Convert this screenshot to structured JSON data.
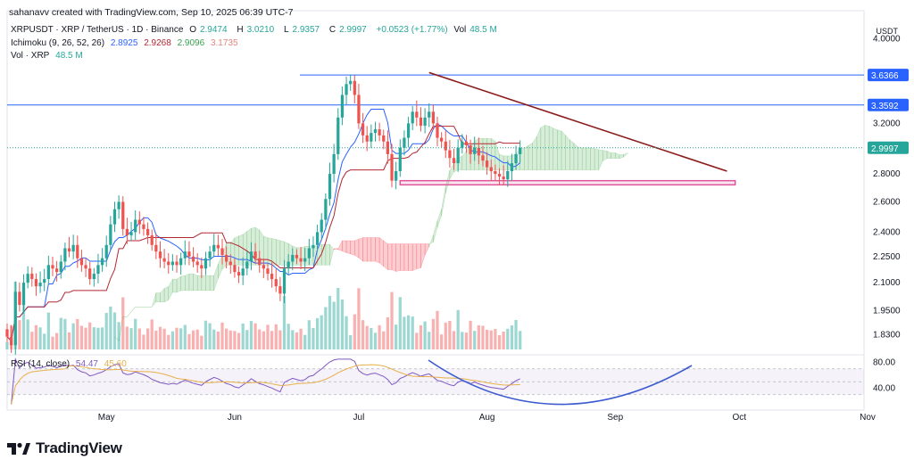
{
  "credit": "sahanavv created with TradingView.com, Sep 10, 2025 06:39 UTC-7",
  "legend": {
    "symbol": "XRPUSDT · XRP / TetherUS · 1D · Binance",
    "o_label": "O",
    "o": "2.9474",
    "h_label": "H",
    "h": "3.0210",
    "l_label": "L",
    "l": "2.9357",
    "c_label": "C",
    "c": "2.9997",
    "change": "+0.0523 (+1.77%)",
    "vol_label": "Vol",
    "vol": "48.5 M",
    "ichimoku_label": "Ichimoku (9, 26, 52, 26)",
    "ich_conversion": "2.8925",
    "ich_base": "2.9268",
    "ich_leading_a": "2.9096",
    "ich_leading_b": "3.1735",
    "vol_series_label": "Vol · XRP",
    "vol_series_value": "48.5 M",
    "rsi_label": "RSI (14, close)",
    "rsi_value": "54.47",
    "rsi_ma_value": "45.60"
  },
  "currency": "USDT",
  "logo_text": "TradingView",
  "chart_data": {
    "type": "candlestick",
    "symbol": "XRPUSDT",
    "timeframe": "1D",
    "x_ticks": [
      "May",
      "Jun",
      "Jul",
      "Aug",
      "Sep",
      "Oct",
      "Nov"
    ],
    "y_scale": "log",
    "y_ticks": [
      "4.0000",
      "3.6366",
      "3.3592",
      "3.2000",
      "2.9997",
      "2.8000",
      "2.6000",
      "2.4000",
      "2.2500",
      "2.1000",
      "1.9500",
      "1.8300"
    ],
    "price_tick_values": [
      4.0,
      3.2,
      2.8,
      2.6,
      2.4,
      2.25,
      2.1,
      1.95,
      1.83
    ],
    "ylim": [
      1.76,
      4.25
    ],
    "horizontal_levels": [
      {
        "label": "3.6366",
        "value": 3.6366,
        "color": "#2962ff"
      },
      {
        "label": "3.3592",
        "value": 3.3592,
        "color": "#2962ff"
      }
    ],
    "last_price": {
      "label": "2.9997",
      "value": 2.9997,
      "color": "#26a69a"
    },
    "support_box": {
      "from_date": "2025-07-11",
      "to_date": "2025-09-30",
      "low": 2.72,
      "high": 2.75,
      "color": "#e0559a"
    },
    "trendline": {
      "from": [
        "2025-07-18",
        3.66
      ],
      "to": [
        "2025-09-28",
        2.82
      ],
      "color": "#8b1a1a"
    },
    "candles_approx": {
      "start_date": "2025-04-07",
      "close": [
        1.82,
        1.78,
        2.05,
        1.98,
        2.1,
        2.15,
        2.12,
        2.08,
        2.1,
        2.12,
        2.2,
        2.18,
        2.16,
        2.22,
        2.3,
        2.28,
        2.32,
        2.24,
        2.2,
        2.18,
        2.12,
        2.15,
        2.2,
        2.24,
        2.32,
        2.45,
        2.55,
        2.6,
        2.42,
        2.38,
        2.4,
        2.48,
        2.45,
        2.42,
        2.38,
        2.32,
        2.28,
        2.24,
        2.22,
        2.2,
        2.22,
        2.2,
        2.24,
        2.28,
        2.25,
        2.22,
        2.2,
        2.18,
        2.24,
        2.28,
        2.32,
        2.3,
        2.26,
        2.22,
        2.2,
        2.16,
        2.14,
        2.18,
        2.22,
        2.28,
        2.24,
        2.2,
        2.18,
        2.15,
        2.12,
        2.08,
        2.04,
        2.18,
        2.22,
        2.26,
        2.24,
        2.22,
        2.24,
        2.3,
        2.32,
        2.4,
        2.48,
        2.62,
        2.8,
        2.95,
        3.25,
        3.45,
        3.55,
        3.58,
        3.45,
        3.2,
        3.1,
        3.05,
        3.12,
        3.15,
        3.1,
        3.05,
        2.95,
        2.75,
        2.82,
        3.0,
        3.08,
        3.2,
        3.3,
        3.25,
        3.18,
        3.25,
        3.3,
        3.2,
        3.08,
        3.05,
        2.98,
        2.92,
        2.88,
        3.0,
        3.05,
        3.02,
        2.95,
        3.0,
        2.94,
        2.9,
        2.85,
        2.82,
        2.8,
        2.78,
        2.76,
        2.82,
        2.88,
        2.95,
        2.9997
      ]
    },
    "rsi": {
      "label": "RSI (14, close)",
      "value": 54.47,
      "ma": 45.6,
      "y_ticks": [
        "80.00",
        "40.00"
      ],
      "upper": 70,
      "lower": 30
    }
  }
}
